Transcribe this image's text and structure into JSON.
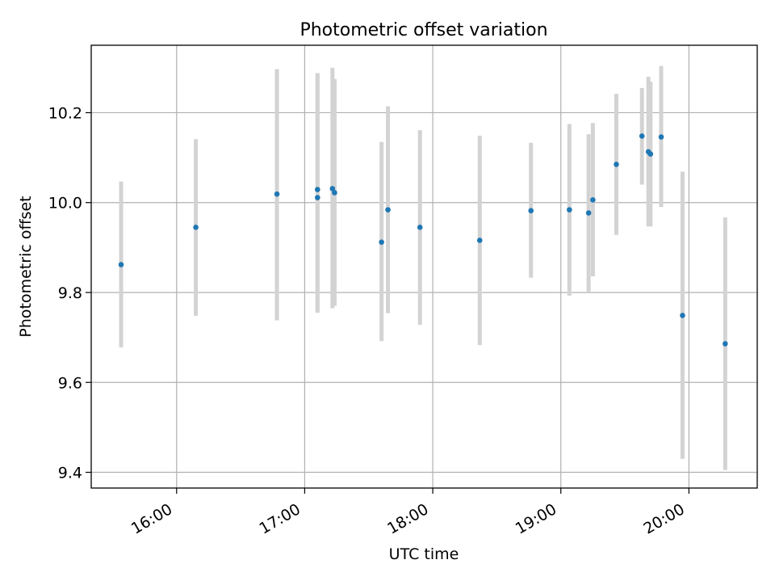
{
  "chart_data": {
    "type": "scatter",
    "title": "Photometric offset variation",
    "xlabel": "UTC time",
    "ylabel": "Photometric offset",
    "x_tick_labels": [
      "16:00",
      "17:00",
      "18:00",
      "19:00",
      "20:00"
    ],
    "x_ticks": [
      "16:00",
      "17:00",
      "18:00",
      "19:00",
      "20:00"
    ],
    "y_tick_labels": [
      "9.4",
      "9.6",
      "9.8",
      "10.0",
      "10.2"
    ],
    "y_ticks": [
      9.4,
      9.6,
      9.8,
      10.0,
      10.2
    ],
    "xlim": [
      "15:20",
      "20:32"
    ],
    "ylim": [
      9.365,
      10.35
    ],
    "grid": true,
    "marker_color": "#1f77b4",
    "errorbar_color": "#d3d3d3",
    "points": [
      {
        "time": "15:34",
        "value": 9.862,
        "err_low": 9.678,
        "err_high": 10.047
      },
      {
        "time": "16:09",
        "value": 9.945,
        "err_low": 9.748,
        "err_high": 10.141
      },
      {
        "time": "16:47",
        "value": 10.019,
        "err_low": 9.738,
        "err_high": 10.297
      },
      {
        "time": "17:06",
        "value": 10.011,
        "err_low": 9.755,
        "err_high": 10.288
      },
      {
        "time": "17:06",
        "value": 10.029,
        "err_low": 9.755,
        "err_high": 10.288
      },
      {
        "time": "17:13",
        "value": 10.031,
        "err_low": 9.765,
        "err_high": 10.3
      },
      {
        "time": "17:14",
        "value": 10.022,
        "err_low": 9.77,
        "err_high": 10.275
      },
      {
        "time": "17:36",
        "value": 9.912,
        "err_low": 9.692,
        "err_high": 10.135
      },
      {
        "time": "17:39",
        "value": 9.984,
        "err_low": 9.754,
        "err_high": 10.214
      },
      {
        "time": "17:54",
        "value": 9.945,
        "err_low": 9.728,
        "err_high": 10.161
      },
      {
        "time": "18:22",
        "value": 9.916,
        "err_low": 9.683,
        "err_high": 10.149
      },
      {
        "time": "18:46",
        "value": 9.982,
        "err_low": 9.833,
        "err_high": 10.133
      },
      {
        "time": "19:04",
        "value": 9.984,
        "err_low": 9.793,
        "err_high": 10.175
      },
      {
        "time": "19:13",
        "value": 9.977,
        "err_low": 9.802,
        "err_high": 10.152
      },
      {
        "time": "19:15",
        "value": 10.006,
        "err_low": 9.836,
        "err_high": 10.177
      },
      {
        "time": "19:26",
        "value": 10.085,
        "err_low": 9.928,
        "err_high": 10.242
      },
      {
        "time": "19:38",
        "value": 10.148,
        "err_low": 10.04,
        "err_high": 10.255
      },
      {
        "time": "19:41",
        "value": 10.113,
        "err_low": 9.947,
        "err_high": 10.28
      },
      {
        "time": "19:42",
        "value": 10.108,
        "err_low": 9.947,
        "err_high": 10.269
      },
      {
        "time": "19:47",
        "value": 10.146,
        "err_low": 9.99,
        "err_high": 10.304
      },
      {
        "time": "19:57",
        "value": 9.749,
        "err_low": 9.43,
        "err_high": 10.069
      },
      {
        "time": "20:17",
        "value": 9.686,
        "err_low": 9.405,
        "err_high": 9.967
      }
    ]
  }
}
